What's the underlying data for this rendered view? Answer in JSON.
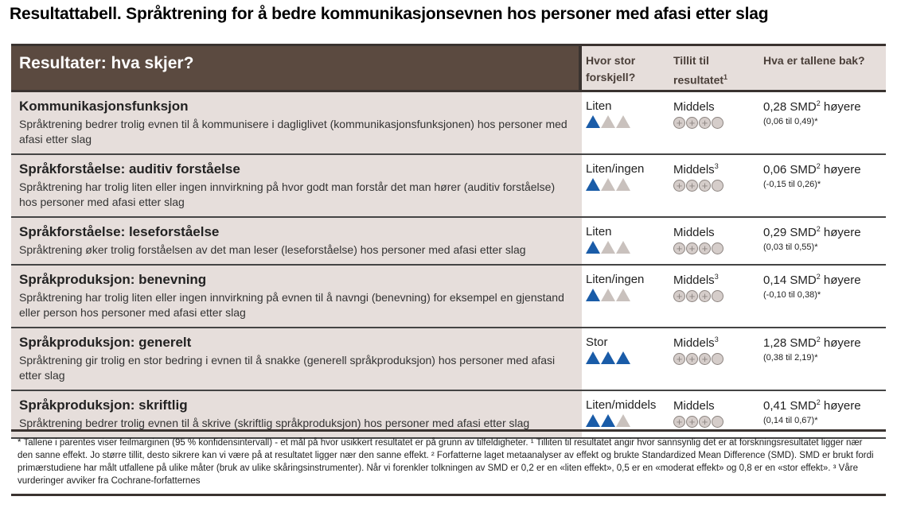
{
  "title": "Resultattabell. Språktrening for å bedre kommunikasjonsevnen hos personer med afasi etter slag",
  "header": {
    "main": "Resultater: hva skjer?",
    "col1": "Hvor stor forskjell?",
    "col2": "Tillit til resultatet",
    "col2_sup": "1",
    "col3": "Hva er tallene bak?"
  },
  "rows": [
    {
      "heading": "Kommunikasjonsfunksjon",
      "desc": "Språktrening bedrer trolig evnen til å kommunisere i dagliglivet (kommunikasjonsfunksjonen) hos personer med afasi etter slag",
      "size": "Liten",
      "size_level": 1,
      "trust": "Middels",
      "trust_sup": "",
      "trust_level": 3,
      "effect": "0,28 SMD",
      "effect_sup": "2",
      "effect_suffix": " høyere",
      "ci": "(0,06 til 0,49)*"
    },
    {
      "heading": "Språkforståelse: auditiv forståelse",
      "desc": "Språktrening har trolig liten eller ingen innvirkning på hvor godt man forstår det man hører (auditiv forståelse) hos personer med afasi etter slag",
      "size": "Liten/ingen",
      "size_level": 1,
      "trust": "Middels",
      "trust_sup": "3",
      "trust_level": 3,
      "effect": "0,06 SMD",
      "effect_sup": "2",
      "effect_suffix": " høyere",
      "ci": "(-0,15 til 0,26)*"
    },
    {
      "heading": "Språkforståelse: leseforståelse",
      "desc": "Språktrening øker trolig forståelsen av det man leser (leseforståelse) hos personer med afasi etter slag",
      "size": "Liten",
      "size_level": 1,
      "trust": "Middels",
      "trust_sup": "",
      "trust_level": 3,
      "effect": "0,29 SMD",
      "effect_sup": "2",
      "effect_suffix": " høyere",
      "ci": "(0,03 til 0,55)*"
    },
    {
      "heading": "Språkproduksjon: benevning",
      "desc": "Språktrening har trolig liten eller ingen innvirkning på evnen til å navngi (benevning) for eksempel en gjenstand eller person hos personer med afasi etter slag",
      "size": "Liten/ingen",
      "size_level": 1,
      "trust": "Middels",
      "trust_sup": "3",
      "trust_level": 3,
      "effect": "0,14 SMD",
      "effect_sup": "2",
      "effect_suffix": " høyere",
      "ci": "(-0,10 til 0,38)*"
    },
    {
      "heading": "Språkproduksjon: generelt",
      "desc": "Språktrening gir trolig en stor bedring i evnen til å snakke (generell språkproduksjon) hos personer med afasi etter slag",
      "size": "Stor",
      "size_level": 3,
      "trust": "Middels",
      "trust_sup": "3",
      "trust_level": 3,
      "effect": "1,28 SMD",
      "effect_sup": "2",
      "effect_suffix": " høyere",
      "ci": "(0,38 til 2,19)*"
    },
    {
      "heading": "Språkproduksjon: skriftlig",
      "desc": "Språktrening bedrer trolig evnen til å skrive (skriftlig språkproduksjon) hos personer med afasi etter slag",
      "size": "Liten/middels",
      "size_level": 2,
      "trust": "Middels",
      "trust_sup": "",
      "trust_level": 3,
      "effect": "0,41 SMD",
      "effect_sup": "2",
      "effect_suffix": " høyere",
      "ci": "(0,14 til 0,67)*"
    }
  ],
  "footnote": "* Tallene i parentes viser feilmarginen (95 % konfidensintervall) - et mål på hvor usikkert resultatet er på grunn av tilfeldigheter. ¹ Tilliten til resultatet angir hvor sannsynlig det er at forskningsresultatet ligger nær den sanne effekt. Jo større tillit, desto sikrere kan vi være på at resultatet ligger nær den sanne effekt. ² Forfatterne laget metaanalyser av effekt og brukte Standardized Mean Difference (SMD). SMD er brukt fordi primærstudiene har målt utfallene på ulike måter (bruk av ulike skåringsinstrumenter). Når vi forenkler tolkningen av SMD er 0,2 er en «liten effekt», 0,5 er en «moderat effekt» og 0,8 er en «stor effekt». ³ Våre vurderinger avviker fra Cochrane-forfatternes",
  "colors": {
    "brown": "#5b4a40",
    "beige": "#e6dedb",
    "blue": "#1a5ca8"
  }
}
